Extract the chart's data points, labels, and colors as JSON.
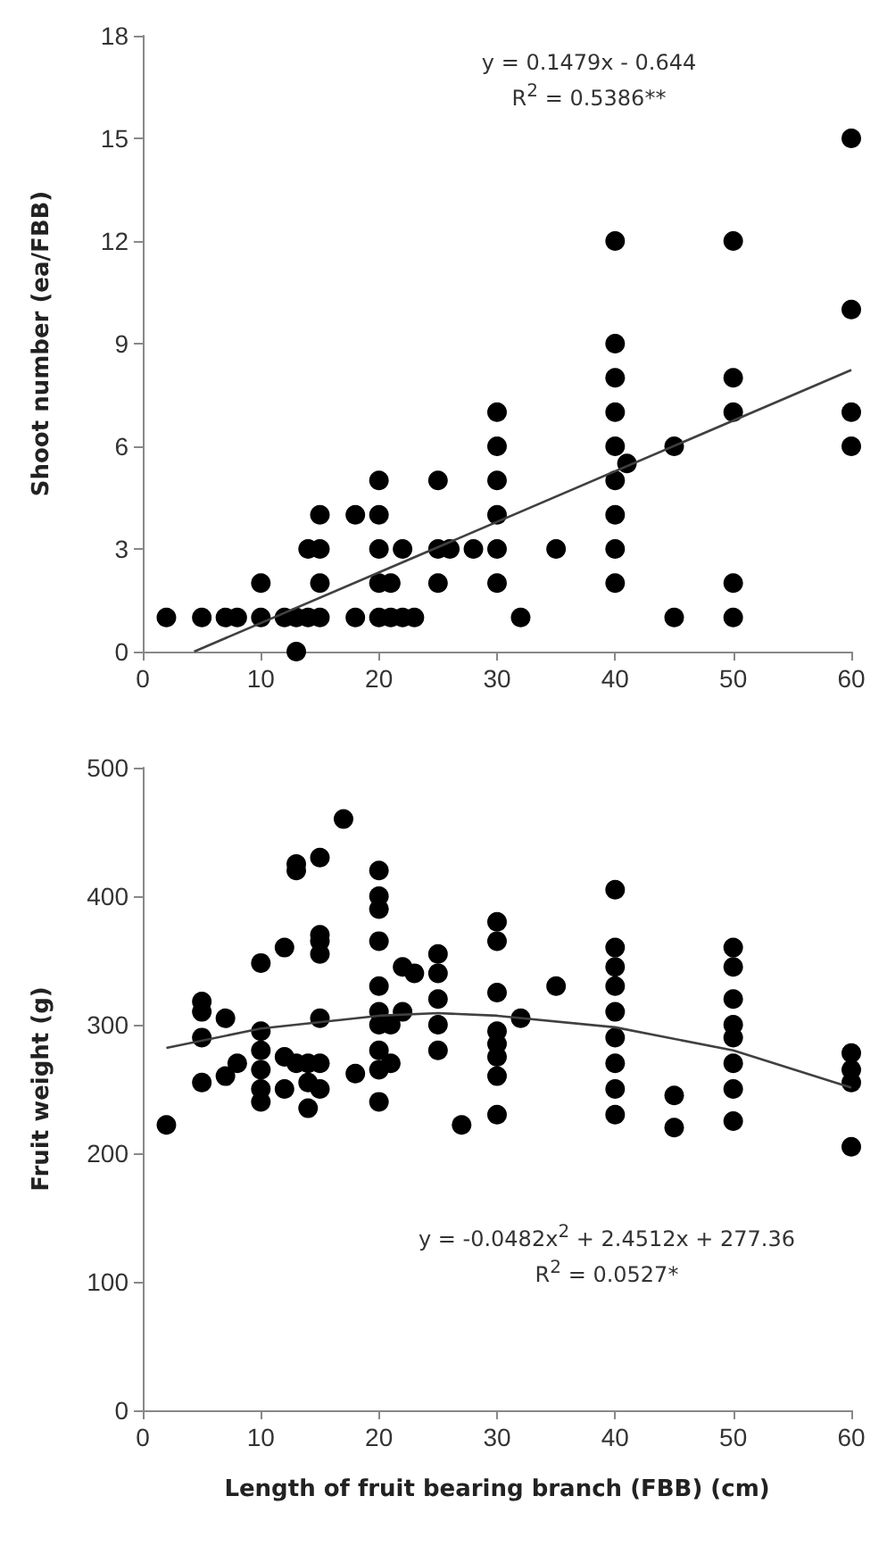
{
  "chart_data": [
    {
      "type": "scatter",
      "ylabel": "Shoot number (ea/FBB)",
      "xlim": [
        0,
        60
      ],
      "xticks": [
        0,
        10,
        20,
        30,
        40,
        50,
        60
      ],
      "ylim": [
        0,
        18
      ],
      "yticks": [
        0,
        3,
        6,
        9,
        12,
        15,
        18
      ],
      "grid": false,
      "marker": "circle",
      "annotations": [
        "y = 0.1479x - 0.644",
        "R$^{2}$ = 0.5386**"
      ],
      "series": [
        {
          "color": "#000000",
          "x": [
            2,
            5,
            7,
            8,
            10,
            10,
            12,
            13,
            13,
            14,
            14,
            15,
            15,
            15,
            15,
            18,
            18,
            20,
            20,
            20,
            20,
            20,
            21,
            21,
            22,
            22,
            23,
            25,
            25,
            25,
            26,
            28,
            30,
            30,
            30,
            30,
            30,
            30,
            32,
            35,
            40,
            40,
            40,
            40,
            40,
            40,
            40,
            40,
            40,
            41,
            45,
            45,
            50,
            50,
            50,
            50,
            50,
            60,
            60,
            60,
            60
          ],
          "values": [
            1,
            1,
            1,
            1,
            1,
            2,
            1,
            0,
            1,
            1,
            3,
            1,
            2,
            3,
            4,
            1,
            4,
            1,
            2,
            3,
            4,
            5,
            1,
            2,
            1,
            3,
            1,
            2,
            3,
            5,
            3,
            3,
            2,
            3,
            4,
            5,
            6,
            7,
            1,
            3,
            2,
            3,
            4,
            5,
            6,
            7,
            8,
            9,
            12,
            5.5,
            1,
            6,
            1,
            2,
            7,
            8,
            12,
            6,
            7,
            10,
            15
          ]
        },
        {
          "type": "line",
          "color": "#404040",
          "marker": "none",
          "x": [
            4.35,
            60
          ],
          "values": [
            0,
            8.23
          ]
        }
      ]
    },
    {
      "type": "scatter",
      "xlabel": "Length of fruit bearing branch (FBB) (cm)",
      "ylabel": "Fruit weight (g)",
      "xlim": [
        0,
        60
      ],
      "xticks": [
        0,
        10,
        20,
        30,
        40,
        50,
        60
      ],
      "ylim": [
        0,
        500
      ],
      "yticks": [
        0,
        100,
        200,
        300,
        400,
        500
      ],
      "grid": false,
      "marker": "circle",
      "annotations": [
        "y = -0.0482x$^{2}$ + 2.4512x + 277.36",
        "R$^{2}$ = 0.0527*"
      ],
      "series": [
        {
          "color": "#000000",
          "x": [
            2,
            5,
            5,
            5,
            5,
            7,
            7,
            8,
            10,
            10,
            10,
            10,
            10,
            10,
            12,
            12,
            12,
            13,
            13,
            13,
            14,
            14,
            14,
            15,
            15,
            15,
            15,
            15,
            15,
            15,
            17,
            18,
            20,
            20,
            20,
            20,
            20,
            20,
            20,
            20,
            20,
            20,
            21,
            21,
            22,
            22,
            23,
            25,
            25,
            25,
            25,
            25,
            27,
            30,
            30,
            30,
            30,
            30,
            30,
            30,
            30,
            32,
            35,
            40,
            40,
            40,
            40,
            40,
            40,
            40,
            40,
            40,
            45,
            45,
            50,
            50,
            50,
            50,
            50,
            50,
            50,
            50,
            60,
            60,
            60,
            60
          ],
          "values": [
            222,
            255,
            290,
            310,
            318,
            305,
            260,
            270,
            240,
            250,
            265,
            280,
            295,
            348,
            360,
            250,
            275,
            425,
            420,
            270,
            235,
            255,
            270,
            250,
            270,
            305,
            355,
            365,
            370,
            430,
            460,
            262,
            240,
            265,
            280,
            300,
            310,
            330,
            365,
            390,
            400,
            420,
            270,
            300,
            310,
            345,
            340,
            280,
            300,
            320,
            340,
            355,
            222,
            230,
            260,
            275,
            285,
            295,
            325,
            365,
            380,
            305,
            330,
            230,
            250,
            270,
            290,
            310,
            330,
            345,
            360,
            405,
            220,
            245,
            225,
            250,
            270,
            290,
            300,
            320,
            345,
            360,
            205,
            255,
            265,
            278
          ]
        },
        {
          "type": "line",
          "color": "#404040",
          "marker": "none",
          "x": [
            2,
            10,
            20,
            25,
            30,
            40,
            50,
            60
          ],
          "values": [
            282,
            297,
            307,
            309,
            307,
            298,
            280,
            251
          ]
        }
      ]
    }
  ]
}
